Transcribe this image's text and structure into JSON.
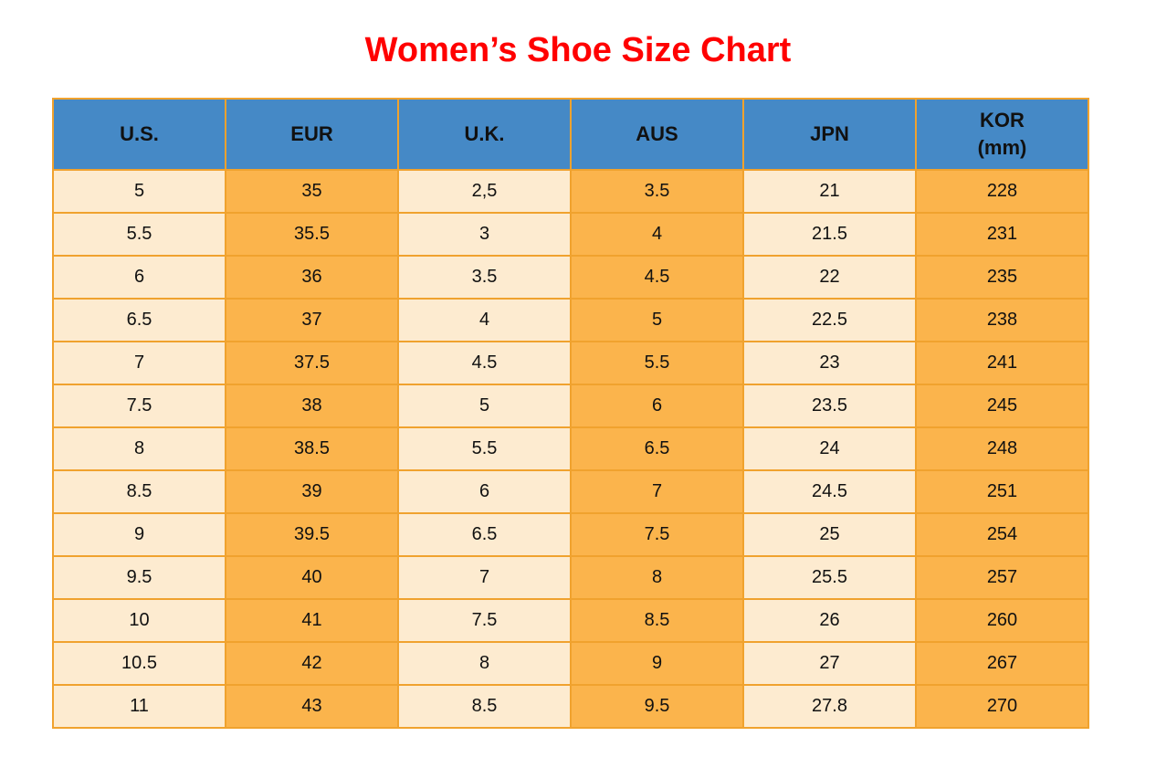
{
  "title": "Women’s Shoe Size Chart",
  "colors": {
    "title_red": "#ff0000",
    "header_blue": "#4589c6",
    "cell_cream": "#fdebd0",
    "cell_orange": "#fbb44c",
    "border_orange": "#f0a22e",
    "text_dark": "#111111"
  },
  "table": {
    "columns": [
      {
        "id": "us",
        "label": "U.S."
      },
      {
        "id": "eur",
        "label": "EUR"
      },
      {
        "id": "uk",
        "label": "U.K."
      },
      {
        "id": "aus",
        "label": "AUS"
      },
      {
        "id": "jpn",
        "label": "JPN"
      },
      {
        "id": "kor",
        "label": "KOR",
        "sublabel": "(mm)"
      }
    ],
    "rows": [
      [
        "5",
        "35",
        "2,5",
        "3.5",
        "21",
        "228"
      ],
      [
        "5.5",
        "35.5",
        "3",
        "4",
        "21.5",
        "231"
      ],
      [
        "6",
        "36",
        "3.5",
        "4.5",
        "22",
        "235"
      ],
      [
        "6.5",
        "37",
        "4",
        "5",
        "22.5",
        "238"
      ],
      [
        "7",
        "37.5",
        "4.5",
        "5.5",
        "23",
        "241"
      ],
      [
        "7.5",
        "38",
        "5",
        "6",
        "23.5",
        "245"
      ],
      [
        "8",
        "38.5",
        "5.5",
        "6.5",
        "24",
        "248"
      ],
      [
        "8.5",
        "39",
        "6",
        "7",
        "24.5",
        "251"
      ],
      [
        "9",
        "39.5",
        "6.5",
        "7.5",
        "25",
        "254"
      ],
      [
        "9.5",
        "40",
        "7",
        "8",
        "25.5",
        "257"
      ],
      [
        "10",
        "41",
        "7.5",
        "8.5",
        "26",
        "260"
      ],
      [
        "10.5",
        "42",
        "8",
        "9",
        "27",
        "267"
      ],
      [
        "11",
        "43",
        "8.5",
        "9.5",
        "27.8",
        "270"
      ]
    ]
  },
  "chart_data": {
    "type": "table",
    "title": "Women’s Shoe Size Chart",
    "columns": [
      "U.S.",
      "EUR",
      "U.K.",
      "AUS",
      "JPN",
      "KOR (mm)"
    ],
    "rows": [
      [
        "5",
        "35",
        "2,5",
        "3.5",
        "21",
        "228"
      ],
      [
        "5.5",
        "35.5",
        "3",
        "4",
        "21.5",
        "231"
      ],
      [
        "6",
        "36",
        "3.5",
        "4.5",
        "22",
        "235"
      ],
      [
        "6.5",
        "37",
        "4",
        "5",
        "22.5",
        "238"
      ],
      [
        "7",
        "37.5",
        "4.5",
        "5.5",
        "23",
        "241"
      ],
      [
        "7.5",
        "38",
        "5",
        "6",
        "23.5",
        "245"
      ],
      [
        "8",
        "38.5",
        "5.5",
        "6.5",
        "24",
        "248"
      ],
      [
        "8.5",
        "39",
        "6",
        "7",
        "24.5",
        "251"
      ],
      [
        "9",
        "39.5",
        "6.5",
        "7.5",
        "25",
        "254"
      ],
      [
        "9.5",
        "40",
        "7",
        "8",
        "25.5",
        "257"
      ],
      [
        "10",
        "41",
        "7.5",
        "8.5",
        "26",
        "260"
      ],
      [
        "10.5",
        "42",
        "8",
        "9",
        "27",
        "267"
      ],
      [
        "11",
        "43",
        "8.5",
        "9.5",
        "27.8",
        "270"
      ]
    ],
    "layout": {
      "header_background": "#4589c6",
      "odd_column_background": "#fdebd0",
      "even_column_background": "#fbb44c",
      "grid": true
    }
  }
}
